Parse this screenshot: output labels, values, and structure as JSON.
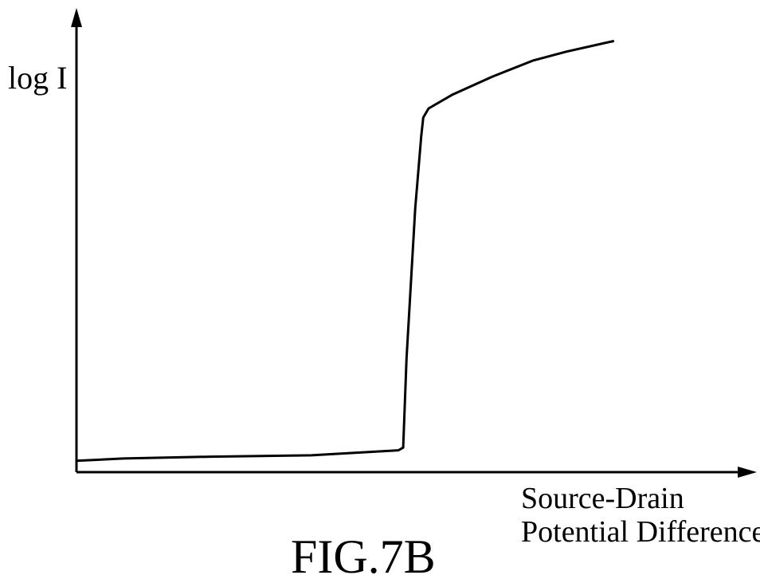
{
  "chart_data": {
    "type": "line",
    "title": "",
    "xlabel": [
      "Source-Drain",
      "Potential Difference"
    ],
    "ylabel": "log I",
    "xticks": [],
    "yticks": [],
    "grid": false,
    "legend": "none",
    "xlim": [
      0,
      100
    ],
    "ylim": [
      0,
      100
    ],
    "series": [
      {
        "name": "",
        "color": "#000000",
        "points": [
          [
            0,
            2.5
          ],
          [
            7,
            3.0
          ],
          [
            20,
            3.4
          ],
          [
            35,
            3.7
          ],
          [
            48,
            4.8
          ],
          [
            48.7,
            5.4
          ],
          [
            49.2,
            25
          ],
          [
            50.5,
            58
          ],
          [
            51.4,
            74
          ],
          [
            51.7,
            78
          ],
          [
            52.5,
            80
          ],
          [
            56,
            83
          ],
          [
            62,
            87
          ],
          [
            68,
            90.5
          ],
          [
            73,
            92.5
          ],
          [
            80,
            94.8
          ]
        ]
      }
    ]
  },
  "figure": {
    "caption": "FIG.7B"
  }
}
